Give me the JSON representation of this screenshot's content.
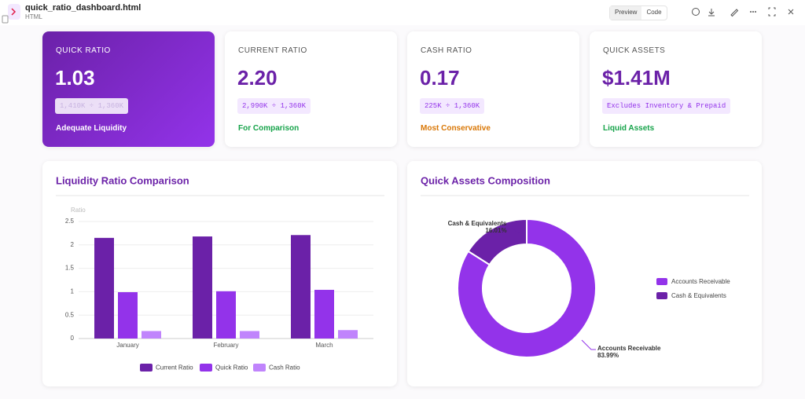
{
  "header": {
    "title": "quick_ratio_dashboard.html",
    "subtitle": "HTML",
    "buttons": [
      "Preview",
      "Code"
    ]
  },
  "cards": [
    {
      "label": "QUICK RATIO",
      "value": "1.03",
      "formula": "1,410K ÷ 1,360K",
      "status": "Adequate Liquidity"
    },
    {
      "label": "CURRENT RATIO",
      "value": "2.20",
      "formula": "2,990K ÷ 1,360K",
      "status": "For Comparison"
    },
    {
      "label": "CASH RATIO",
      "value": "0.17",
      "formula": "225K ÷ 1,360K",
      "status": "Most Conservative"
    },
    {
      "label": "QUICK ASSETS",
      "value": "$1.41M",
      "formula": "Excludes Inventory & Prepaid",
      "status": "Liquid Assets"
    }
  ],
  "bar_chart": {
    "type": "bar",
    "title": "Liquidity Ratio Comparison",
    "y_label": "Ratio",
    "categories": [
      "January",
      "February",
      "March"
    ],
    "series": [
      {
        "name": "Current Ratio",
        "color": "#6b21a8",
        "values": [
          2.15,
          2.18,
          2.21
        ]
      },
      {
        "name": "Quick Ratio",
        "color": "#9333ea",
        "values": [
          0.99,
          1.01,
          1.04
        ]
      },
      {
        "name": "Cash Ratio",
        "color": "#c084fc",
        "values": [
          0.16,
          0.16,
          0.18
        ]
      }
    ],
    "ylim": [
      0,
      2.5
    ],
    "yticks": [
      0,
      0.5,
      1,
      1.5,
      2,
      2.5
    ],
    "grid": true,
    "legend": "bottom"
  },
  "donut_chart": {
    "type": "doughnut",
    "title": "Quick Assets Composition",
    "categories": [
      "Accounts Receivable",
      "Cash & Equivalents"
    ],
    "values": [
      83.99,
      16.01
    ],
    "value_labels": [
      "83.99%",
      "16.01%"
    ],
    "colors": [
      "#9333ea",
      "#6b21a8"
    ],
    "legend": "right"
  }
}
